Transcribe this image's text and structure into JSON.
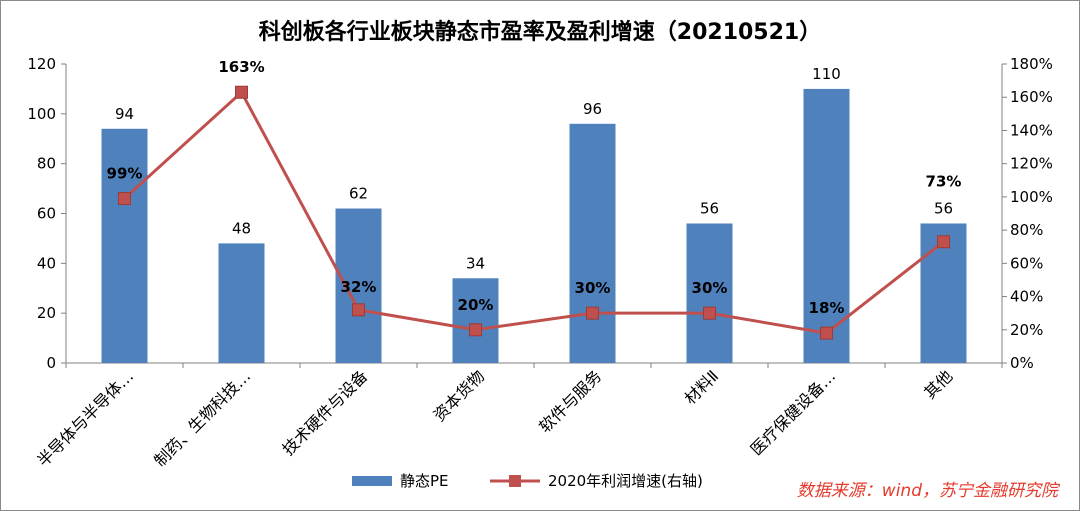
{
  "chart_data": {
    "type": "bar",
    "title": "科创板各行业板块静态市盈率及盈利增速（20210521）",
    "categories": [
      "半导体与半导体…",
      "制药、生物科技…",
      "技术硬件与设备",
      "资本货物",
      "软件与服务",
      "材料Ⅱ",
      "医疗保健设备…",
      "其他"
    ],
    "series": [
      {
        "name": "静态PE",
        "type": "bar",
        "axis": "left",
        "color": "#4f81bd",
        "values": [
          94,
          48,
          62,
          34,
          96,
          56,
          110,
          56
        ],
        "labels": [
          "94",
          "48",
          "62",
          "34",
          "96",
          "56",
          "110",
          "56"
        ]
      },
      {
        "name": "2020年利润增速(右轴)",
        "type": "line",
        "axis": "right",
        "color": "#c0504d",
        "values": [
          99,
          163,
          32,
          20,
          30,
          30,
          18,
          73
        ],
        "labels": [
          "99%",
          "163%",
          "32%",
          "20%",
          "30%",
          "30%",
          "18%",
          "73%"
        ]
      }
    ],
    "y_left": {
      "min": 0,
      "max": 120,
      "ticks": [
        "0",
        "20",
        "40",
        "60",
        "80",
        "100",
        "120"
      ]
    },
    "y_right": {
      "min": 0,
      "max": 180,
      "ticks": [
        "0%",
        "20%",
        "40%",
        "60%",
        "80%",
        "100%",
        "120%",
        "140%",
        "160%",
        "180%"
      ]
    },
    "grid": false,
    "legend": "bottom"
  },
  "source": "数据来源：wind，苏宁金融研究院"
}
